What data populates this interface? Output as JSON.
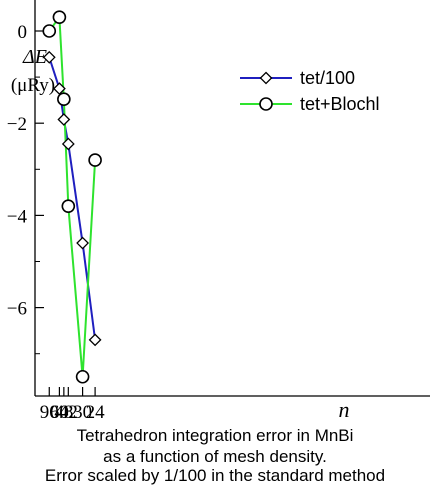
{
  "chart_data": {
    "type": "line",
    "caption": [
      "Tetrahedron integration error in MnBi",
      "as a function of mesh density.",
      "Error scaled by 1/100 in the standard method"
    ],
    "ylabel": "ΔE",
    "ylabel_unit": "(μRy)",
    "xlabel": "n",
    "x_ticks": [
      "90",
      "60",
      "48",
      "42",
      "30",
      "24"
    ],
    "y_ticks": [
      "0",
      "−2",
      "−4",
      "−6"
    ],
    "ylim": [
      -7.8,
      0.6
    ],
    "grid": false,
    "legend_position": "top-right",
    "series": [
      {
        "name": "tet/100",
        "color": "#1f1fbf",
        "marker": "diamond",
        "x": [
          90,
          60,
          48,
          42,
          30,
          24
        ],
        "y": [
          -0.57,
          -1.25,
          -1.92,
          -2.45,
          -4.6,
          -6.7
        ]
      },
      {
        "name": "tet+Blochl",
        "color": "#2ee32e",
        "marker": "circle",
        "x": [
          90,
          60,
          48,
          42,
          30,
          24
        ],
        "y": [
          0.0,
          0.3,
          -1.48,
          -3.8,
          -7.5,
          -2.8
        ]
      }
    ]
  }
}
